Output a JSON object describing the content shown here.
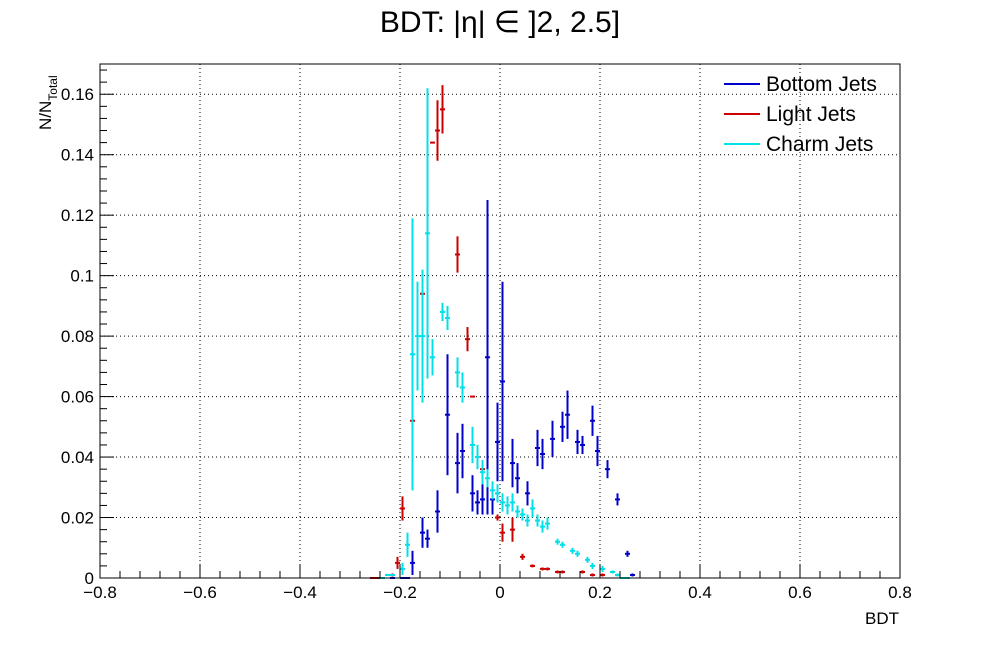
{
  "chart_data": {
    "type": "scatter",
    "title": "BDT: |η| ∈ ]2, 2.5]",
    "xlabel": "BDT",
    "ylabel_main": "N/N",
    "ylabel_sub": "Total",
    "xlim": [
      -0.8,
      0.8
    ],
    "ylim": [
      0,
      0.17
    ],
    "xticks": [
      -0.8,
      -0.6,
      -0.4,
      -0.2,
      0,
      0.2,
      0.4,
      0.6,
      0.8
    ],
    "xtick_labels": [
      "−0.8",
      "−0.6",
      "−0.4",
      "−0.2",
      "0",
      "0.2",
      "0.4",
      "0.6",
      "0.8"
    ],
    "yticks": [
      0,
      0.02,
      0.04,
      0.06,
      0.08,
      0.1,
      0.12,
      0.14,
      0.16
    ],
    "ytick_labels": [
      "0",
      "0.02",
      "0.04",
      "0.06",
      "0.08",
      "0.1",
      "0.12",
      "0.14",
      "0.16"
    ],
    "grid": true,
    "legend_position": "top-right",
    "bin_width": 0.01,
    "series": [
      {
        "name": "Bottom Jets",
        "color": "#0000cc",
        "points": [
          [
            -0.215,
            0.0,
            0.0
          ],
          [
            -0.195,
            0.0,
            0.0
          ],
          [
            -0.185,
            0.0,
            0.0
          ],
          [
            -0.175,
            0.005,
            0.004
          ],
          [
            -0.155,
            0.015,
            0.005
          ],
          [
            -0.145,
            0.013,
            0.003
          ],
          [
            -0.125,
            0.022,
            0.007
          ],
          [
            -0.105,
            0.054,
            0.02
          ],
          [
            -0.085,
            0.038,
            0.01
          ],
          [
            -0.075,
            0.042,
            0.009
          ],
          [
            -0.055,
            0.028,
            0.006
          ],
          [
            -0.045,
            0.025,
            0.004
          ],
          [
            -0.035,
            0.026,
            0.005
          ],
          [
            -0.025,
            0.073,
            0.052
          ],
          [
            -0.015,
            0.026,
            0.005
          ],
          [
            -0.005,
            0.045,
            0.013
          ],
          [
            0.005,
            0.065,
            0.033
          ],
          [
            0.025,
            0.038,
            0.008
          ],
          [
            0.035,
            0.033,
            0.005
          ],
          [
            0.055,
            0.028,
            0.004
          ],
          [
            0.075,
            0.043,
            0.006
          ],
          [
            0.085,
            0.041,
            0.005
          ],
          [
            0.105,
            0.046,
            0.006
          ],
          [
            0.125,
            0.05,
            0.005
          ],
          [
            0.135,
            0.054,
            0.008
          ],
          [
            0.155,
            0.045,
            0.004
          ],
          [
            0.165,
            0.044,
            0.003
          ],
          [
            0.185,
            0.052,
            0.005
          ],
          [
            0.195,
            0.042,
            0.005
          ],
          [
            0.215,
            0.036,
            0.003
          ],
          [
            0.235,
            0.026,
            0.002
          ],
          [
            0.255,
            0.008,
            0.001
          ],
          [
            0.265,
            0.001,
            0.0005
          ]
        ]
      },
      {
        "name": "Light Jets",
        "color": "#cc0000",
        "points": [
          [
            -0.255,
            0.0,
            0.0
          ],
          [
            -0.245,
            0.0,
            0.0
          ],
          [
            -0.215,
            0.001,
            0.0005
          ],
          [
            -0.205,
            0.005,
            0.002
          ],
          [
            -0.195,
            0.023,
            0.004
          ],
          [
            -0.175,
            0.052,
            0.0
          ],
          [
            -0.155,
            0.094,
            0.0
          ],
          [
            -0.135,
            0.144,
            0.0
          ],
          [
            -0.125,
            0.148,
            0.01
          ],
          [
            -0.115,
            0.155,
            0.008
          ],
          [
            -0.085,
            0.107,
            0.006
          ],
          [
            -0.065,
            0.079,
            0.004
          ],
          [
            -0.055,
            0.06,
            0.0
          ],
          [
            -0.035,
            0.036,
            0.002
          ],
          [
            -0.005,
            0.02,
            0.001
          ],
          [
            0.005,
            0.015,
            0.003
          ],
          [
            0.025,
            0.016,
            0.004
          ],
          [
            0.045,
            0.007,
            0.001
          ],
          [
            0.065,
            0.004,
            0.0005
          ],
          [
            0.085,
            0.003,
            0.0005
          ],
          [
            0.095,
            0.003,
            0.0005
          ],
          [
            0.115,
            0.002,
            0.0005
          ],
          [
            0.125,
            0.002,
            0.0005
          ],
          [
            0.165,
            0.002,
            0.0005
          ],
          [
            0.185,
            0.001,
            0.0005
          ],
          [
            0.205,
            0.001,
            0.0005
          ]
        ]
      },
      {
        "name": "Charm Jets",
        "color": "#00e0e8",
        "points": [
          [
            -0.235,
            0.0,
            0.0
          ],
          [
            -0.225,
            0.001,
            0.0
          ],
          [
            -0.215,
            0.001,
            0.0
          ],
          [
            -0.195,
            0.003,
            0.002
          ],
          [
            -0.185,
            0.011,
            0.004
          ],
          [
            -0.175,
            0.074,
            0.045
          ],
          [
            -0.165,
            0.08,
            0.018
          ],
          [
            -0.155,
            0.08,
            0.022
          ],
          [
            -0.145,
            0.114,
            0.048
          ],
          [
            -0.135,
            0.073,
            0.006
          ],
          [
            -0.115,
            0.088,
            0.003
          ],
          [
            -0.105,
            0.086,
            0.004
          ],
          [
            -0.085,
            0.068,
            0.005
          ],
          [
            -0.075,
            0.063,
            0.005
          ],
          [
            -0.055,
            0.044,
            0.006
          ],
          [
            -0.045,
            0.04,
            0.004
          ],
          [
            -0.035,
            0.035,
            0.004
          ],
          [
            -0.025,
            0.033,
            0.003
          ],
          [
            -0.015,
            0.029,
            0.003
          ],
          [
            -0.005,
            0.028,
            0.003
          ],
          [
            0.005,
            0.025,
            0.003
          ],
          [
            0.015,
            0.024,
            0.003
          ],
          [
            0.025,
            0.025,
            0.003
          ],
          [
            0.035,
            0.022,
            0.002
          ],
          [
            0.045,
            0.021,
            0.002
          ],
          [
            0.055,
            0.019,
            0.002
          ],
          [
            0.065,
            0.023,
            0.003
          ],
          [
            0.075,
            0.019,
            0.002
          ],
          [
            0.085,
            0.017,
            0.002
          ],
          [
            0.095,
            0.018,
            0.002
          ],
          [
            0.115,
            0.012,
            0.001
          ],
          [
            0.125,
            0.011,
            0.001
          ],
          [
            0.145,
            0.009,
            0.001
          ],
          [
            0.155,
            0.008,
            0.001
          ],
          [
            0.175,
            0.006,
            0.001
          ],
          [
            0.185,
            0.004,
            0.001
          ],
          [
            0.205,
            0.003,
            0.001
          ],
          [
            0.225,
            0.002,
            0.0005
          ],
          [
            0.235,
            0.001,
            0.0005
          ],
          [
            0.245,
            0.0,
            0.0
          ],
          [
            0.255,
            0.0,
            0.0
          ]
        ]
      }
    ]
  }
}
